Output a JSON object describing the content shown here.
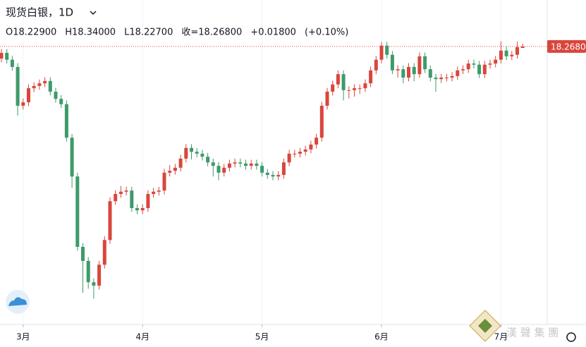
{
  "chart_data": {
    "type": "candlestick",
    "title": "现货白银，1D",
    "ohlc_header": [
      "O18.22900",
      "H18.34000",
      "L18.22700",
      "收=18.26800",
      "+0.01800",
      "(+0.10%)"
    ],
    "watermark": "漢 聲 集 團",
    "up_color": "#d9463c",
    "down_color": "#3e9a6b",
    "ylim": [
      10.96,
      19.49
    ],
    "price_line": {
      "value": 18.268,
      "label": "18.2680"
    },
    "categories": [
      null,
      null,
      null,
      null,
      "3月",
      null,
      null,
      null,
      null,
      null,
      null,
      null,
      null,
      null,
      null,
      null,
      null,
      null,
      null,
      null,
      null,
      null,
      null,
      null,
      null,
      null,
      "4月",
      null,
      null,
      null,
      null,
      null,
      null,
      null,
      null,
      null,
      null,
      null,
      null,
      null,
      null,
      null,
      null,
      null,
      null,
      null,
      null,
      null,
      "5月",
      null,
      null,
      null,
      null,
      null,
      null,
      null,
      null,
      null,
      null,
      null,
      null,
      null,
      null,
      null,
      null,
      null,
      null,
      null,
      null,
      null,
      "6月",
      null,
      null,
      null,
      null,
      null,
      null,
      null,
      null,
      null,
      null,
      null,
      null,
      null,
      null,
      null,
      null,
      null,
      null,
      null,
      null,
      null,
      "7月",
      null,
      null,
      null,
      null
    ],
    "open": [
      17.95,
      18.1,
      17.92,
      17.73,
      16.71,
      16.8,
      17.17,
      17.23,
      17.3,
      17.36,
      17.08,
      16.89,
      16.75,
      15.87,
      14.85,
      13.0,
      12.63,
      12.07,
      11.98,
      12.53,
      13.18,
      14.2,
      14.39,
      14.45,
      14.48,
      14.02,
      13.96,
      14.02,
      14.39,
      14.45,
      14.48,
      14.95,
      15.0,
      15.08,
      15.32,
      15.6,
      15.5,
      15.45,
      15.37,
      15.22,
      15.13,
      14.95,
      15.08,
      15.19,
      15.22,
      15.19,
      15.13,
      15.19,
      15.13,
      14.95,
      14.89,
      14.85,
      14.89,
      15.22,
      15.45,
      15.45,
      15.5,
      15.56,
      15.69,
      15.87,
      16.71,
      17.08,
      17.27,
      17.54,
      17.12,
      17.12,
      17.17,
      17.17,
      17.3,
      17.64,
      17.92,
      18.29,
      18.05,
      17.64,
      17.67,
      17.45,
      17.73,
      17.54,
      18.01,
      17.67,
      17.45,
      17.41,
      17.45,
      17.45,
      17.49,
      17.64,
      17.67,
      17.82,
      17.79,
      17.54,
      17.79,
      17.82,
      17.92,
      18.16,
      18.01,
      18.05,
      18.229
    ],
    "high": [
      18.2,
      18.2,
      18.02,
      17.83,
      16.9,
      17.27,
      17.33,
      17.4,
      17.46,
      17.46,
      17.18,
      16.99,
      16.85,
      15.97,
      14.95,
      13.1,
      12.73,
      12.17,
      12.63,
      13.28,
      14.3,
      14.49,
      14.6,
      14.58,
      14.58,
      14.12,
      14.12,
      14.49,
      14.55,
      14.58,
      15.05,
      15.15,
      15.18,
      15.42,
      15.7,
      15.7,
      15.6,
      15.55,
      15.47,
      15.32,
      15.23,
      15.18,
      15.29,
      15.32,
      15.32,
      15.29,
      15.29,
      15.29,
      15.23,
      15.05,
      14.99,
      14.99,
      15.32,
      15.55,
      15.55,
      15.6,
      15.66,
      15.79,
      15.97,
      16.81,
      17.18,
      17.37,
      17.64,
      17.64,
      17.22,
      17.27,
      17.27,
      17.4,
      17.74,
      18.02,
      18.39,
      18.39,
      18.15,
      17.77,
      17.77,
      17.83,
      17.83,
      18.11,
      18.11,
      17.77,
      17.55,
      17.55,
      17.55,
      17.59,
      17.74,
      17.77,
      17.92,
      17.92,
      17.89,
      17.89,
      17.92,
      18.02,
      18.4,
      18.26,
      18.15,
      18.4,
      18.34
    ],
    "low": [
      17.85,
      17.82,
      17.63,
      16.45,
      16.61,
      16.7,
      17.07,
      17.13,
      17.2,
      16.98,
      16.79,
      16.65,
      15.77,
      14.55,
      12.9,
      11.79,
      11.9,
      11.64,
      11.88,
      12.43,
      13.08,
      14.1,
      14.29,
      14.35,
      13.92,
      13.86,
      13.86,
      13.92,
      14.29,
      14.35,
      14.38,
      14.85,
      14.9,
      14.98,
      15.22,
      15.3,
      15.35,
      15.27,
      15.12,
      14.85,
      14.75,
      14.85,
      14.98,
      15.09,
      15.09,
      15.03,
      15.03,
      15.03,
      14.85,
      14.79,
      14.75,
      14.75,
      14.79,
      15.12,
      15.35,
      15.35,
      15.4,
      15.46,
      15.59,
      15.77,
      16.61,
      16.98,
      17.17,
      16.85,
      16.9,
      16.95,
      17.02,
      17.07,
      17.2,
      17.54,
      17.82,
      17.95,
      17.54,
      17.45,
      17.3,
      17.35,
      17.35,
      17.44,
      17.57,
      17.35,
      17.08,
      17.31,
      17.35,
      17.35,
      17.39,
      17.54,
      17.57,
      17.69,
      17.44,
      17.44,
      17.69,
      17.72,
      17.82,
      17.91,
      17.91,
      17.95,
      18.227
    ],
    "close": [
      18.1,
      17.92,
      17.73,
      16.71,
      16.8,
      17.17,
      17.23,
      17.3,
      17.36,
      17.08,
      16.89,
      16.75,
      15.87,
      14.85,
      13.0,
      12.63,
      12.07,
      11.98,
      12.53,
      13.18,
      14.2,
      14.39,
      14.45,
      14.48,
      14.02,
      13.96,
      14.02,
      14.39,
      14.45,
      14.48,
      14.95,
      15.0,
      15.08,
      15.32,
      15.6,
      15.5,
      15.45,
      15.37,
      15.22,
      15.13,
      14.95,
      15.08,
      15.19,
      15.22,
      15.19,
      15.13,
      15.19,
      15.13,
      14.95,
      14.89,
      14.85,
      14.89,
      15.22,
      15.45,
      15.45,
      15.5,
      15.56,
      15.69,
      15.87,
      16.71,
      17.08,
      17.27,
      17.54,
      17.12,
      17.12,
      17.17,
      17.17,
      17.3,
      17.64,
      17.92,
      18.29,
      18.05,
      17.64,
      17.67,
      17.45,
      17.73,
      17.54,
      18.01,
      17.67,
      17.45,
      17.41,
      17.45,
      17.45,
      17.49,
      17.64,
      17.67,
      17.82,
      17.79,
      17.54,
      17.79,
      17.82,
      17.92,
      18.16,
      18.01,
      18.05,
      18.25,
      18.268
    ]
  }
}
